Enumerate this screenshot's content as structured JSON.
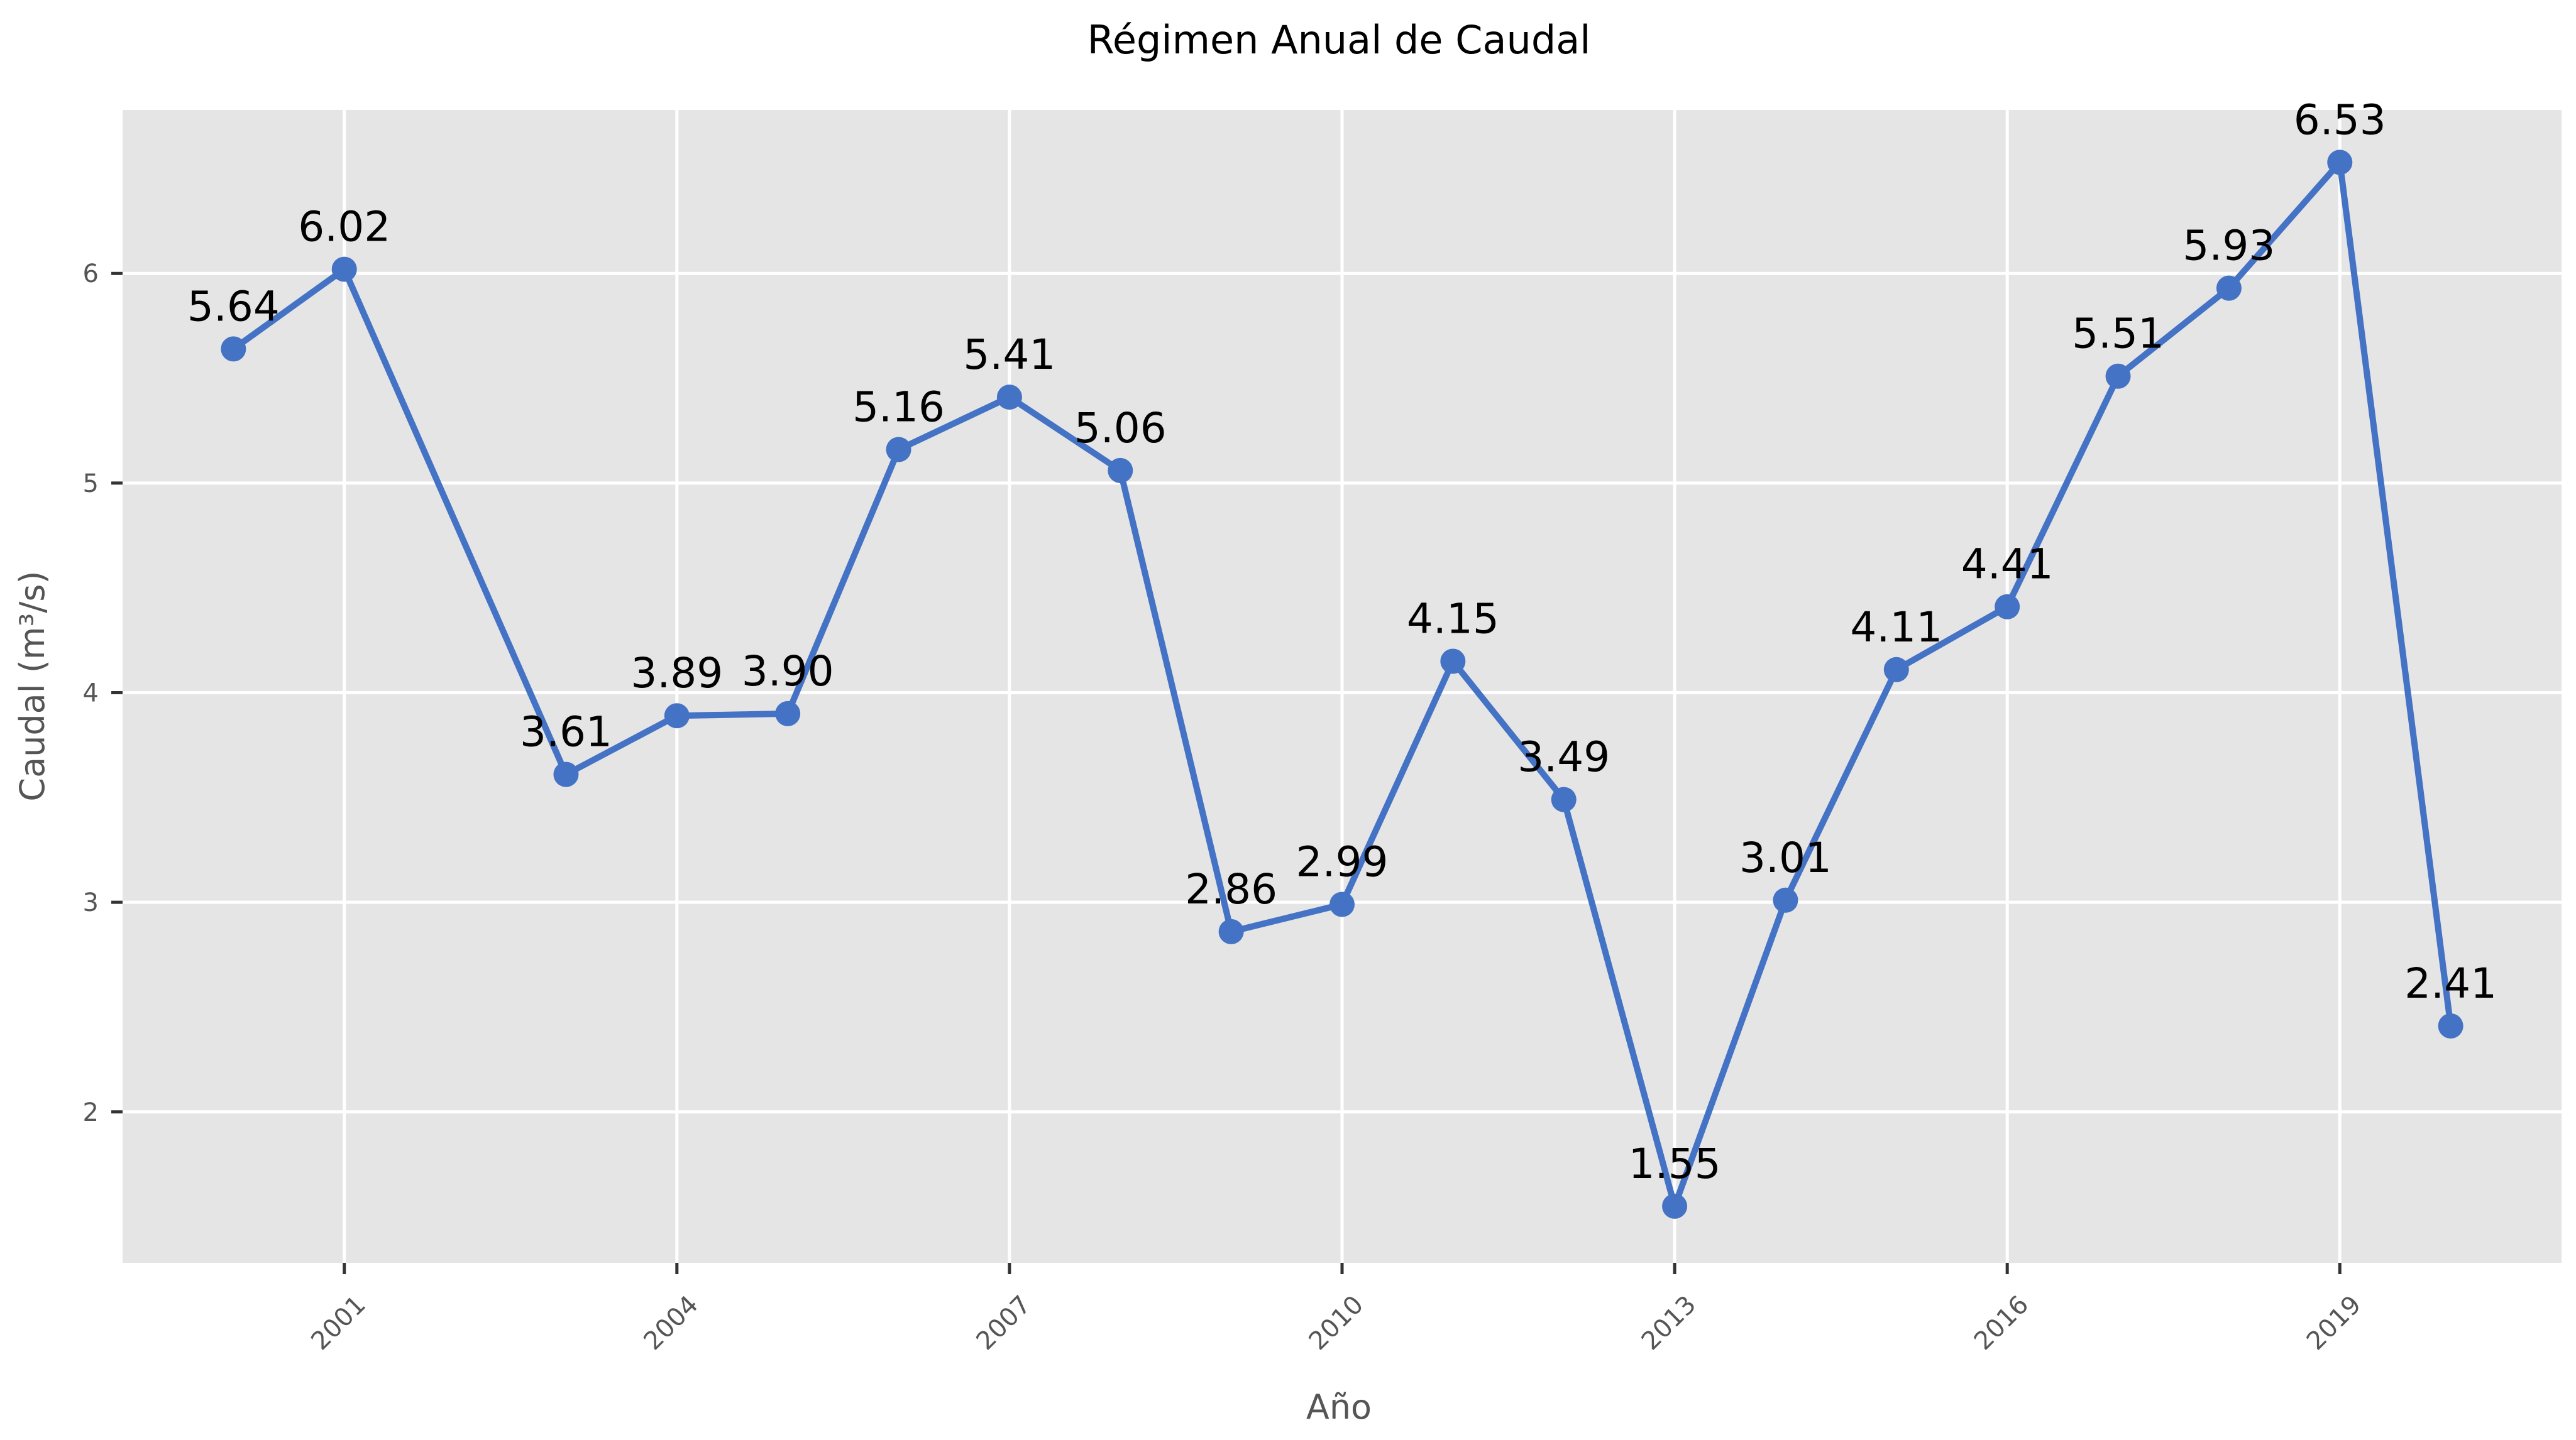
{
  "chart_data": {
    "type": "line",
    "title": "Régimen Anual de Caudal",
    "xlabel": "Año",
    "ylabel": "Caudal (m³/s)",
    "x": [
      2000,
      2001,
      2003,
      2004,
      2005,
      2006,
      2007,
      2008,
      2009,
      2010,
      2011,
      2012,
      2013,
      2014,
      2015,
      2016,
      2017,
      2018,
      2019,
      2020
    ],
    "series": [
      {
        "values": [
          5.64,
          6.02,
          3.61,
          3.89,
          3.9,
          5.16,
          5.41,
          5.06,
          2.86,
          2.99,
          4.15,
          3.49,
          1.55,
          3.01,
          4.11,
          4.41,
          5.51,
          5.93,
          6.53,
          2.41
        ],
        "data_labels": [
          "5.64",
          "6.02",
          "3.61",
          "3.89",
          "3.90",
          "5.16",
          "5.41",
          "5.06",
          "2.86",
          "2.99",
          "4.15",
          "3.49",
          "1.55",
          "3.01",
          "4.11",
          "4.41",
          "5.51",
          "5.93",
          "6.53",
          "2.41"
        ],
        "color": "#4472c4",
        "marker": "circle"
      }
    ],
    "xticks": [
      2001,
      2004,
      2007,
      2010,
      2013,
      2016,
      2019
    ],
    "xtick_labels": [
      "2001",
      "2004",
      "2007",
      "2010",
      "2013",
      "2016",
      "2019"
    ],
    "yticks": [
      2,
      3,
      4,
      5,
      6
    ],
    "ytick_labels": [
      "2",
      "3",
      "4",
      "5",
      "6"
    ],
    "xlim": [
      1999.0,
      2021.0
    ],
    "ylim": [
      1.28,
      6.78
    ],
    "grid": true,
    "legend": "none",
    "colors": {
      "plot_background": "#e5e5e5",
      "grid": "#ffffff",
      "line": "#4472c4"
    }
  }
}
